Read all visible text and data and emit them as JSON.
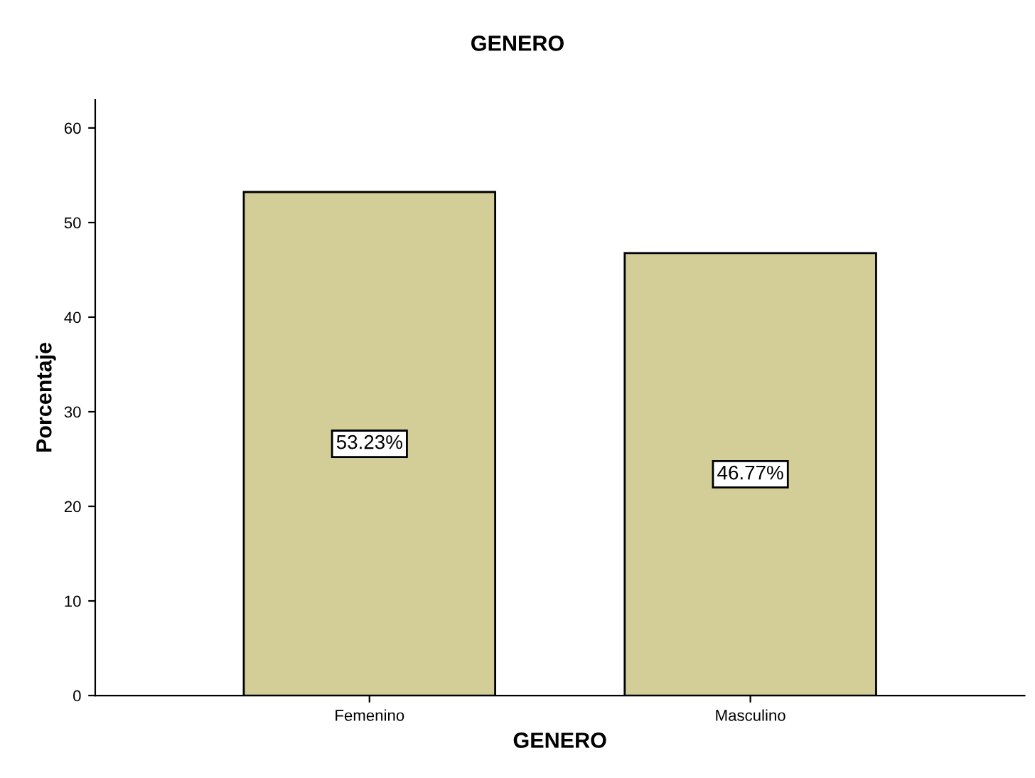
{
  "chart_data": {
    "type": "bar",
    "title": "GENERO",
    "xlabel": "GENERO",
    "ylabel": "Porcentaje",
    "categories": [
      "Femenino",
      "Masculino"
    ],
    "values": [
      53.23,
      46.77
    ],
    "value_labels": [
      "53.23%",
      "46.77%"
    ],
    "color": "#d3ce97",
    "ylim": [
      0,
      63
    ],
    "yticks": [
      0,
      10,
      20,
      30,
      40,
      50,
      60
    ],
    "grid": false,
    "legend": false
  }
}
